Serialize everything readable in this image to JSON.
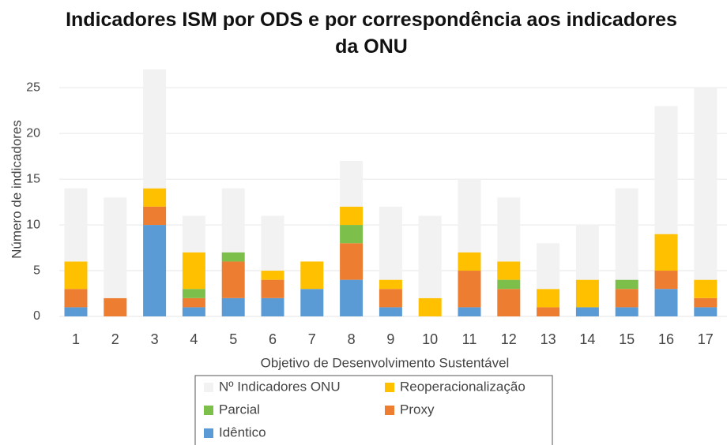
{
  "chart_data": {
    "type": "stacked_bar",
    "title": "Indicadores ISM por ODS e por correspondência aos indicadores da ONU",
    "x_label": "Objetivo de Desenvolvimento Sustentável",
    "y_label": "Número de indicadores",
    "categories": [
      "1",
      "2",
      "3",
      "4",
      "5",
      "6",
      "7",
      "8",
      "9",
      "10",
      "11",
      "12",
      "13",
      "14",
      "15",
      "16",
      "17"
    ],
    "series": [
      {
        "name": "Idêntico",
        "color": "#5b9bd5",
        "values": [
          1,
          0,
          10,
          1,
          2,
          2,
          3,
          4,
          1,
          0,
          1,
          0,
          0,
          1,
          1,
          3,
          1
        ]
      },
      {
        "name": "Proxy",
        "color": "#ed7d31",
        "values": [
          2,
          2,
          2,
          1,
          4,
          2,
          0,
          4,
          2,
          0,
          4,
          3,
          1,
          0,
          2,
          2,
          1
        ]
      },
      {
        "name": "Parcial",
        "color": "#7cbf4a",
        "values": [
          0,
          0,
          0,
          1,
          1,
          0,
          0,
          2,
          0,
          0,
          0,
          1,
          0,
          0,
          1,
          0,
          0
        ]
      },
      {
        "name": "Reoperacionalização",
        "color": "#ffc000",
        "values": [
          3,
          0,
          2,
          4,
          0,
          1,
          3,
          2,
          1,
          2,
          2,
          2,
          2,
          3,
          0,
          4,
          2
        ]
      },
      {
        "name": "Nº Indicadores ONU",
        "color": "#f2f2f2",
        "values": [
          8,
          11,
          13,
          4,
          7,
          6,
          0,
          5,
          8,
          9,
          8,
          7,
          5,
          6,
          10,
          14,
          21
        ]
      }
    ],
    "ylim": [
      0,
      27
    ],
    "yticks": [
      0,
      5,
      10,
      15,
      20,
      25
    ],
    "grid": true
  }
}
